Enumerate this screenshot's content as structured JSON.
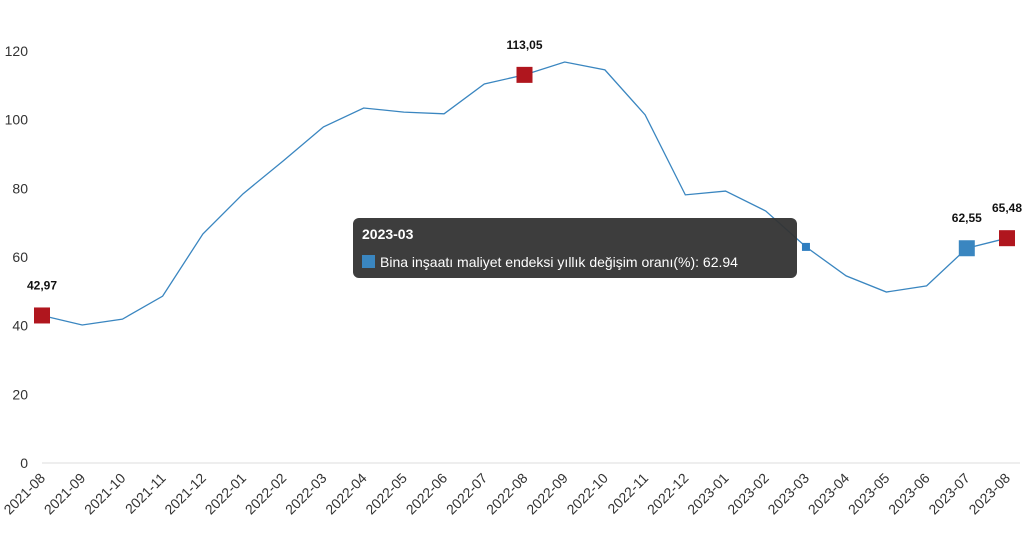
{
  "chart_data": {
    "type": "line",
    "categories": [
      "2021-08",
      "2021-09",
      "2021-10",
      "2021-11",
      "2021-12",
      "2022-01",
      "2022-02",
      "2022-03",
      "2022-04",
      "2022-05",
      "2022-06",
      "2022-07",
      "2022-08",
      "2022-09",
      "2022-10",
      "2022-11",
      "2022-12",
      "2023-01",
      "2023-02",
      "2023-03",
      "2023-04",
      "2023-05",
      "2023-06",
      "2023-07",
      "2023-08"
    ],
    "values": [
      42.97,
      40.2,
      41.9,
      48.6,
      66.7,
      78.4,
      88.0,
      97.9,
      103.4,
      102.2,
      101.7,
      110.4,
      113.05,
      116.8,
      114.5,
      101.4,
      78.1,
      79.2,
      73.4,
      62.94,
      54.5,
      49.8,
      51.6,
      62.55,
      65.48
    ],
    "value_labels": [
      "42,97",
      null,
      null,
      null,
      null,
      null,
      null,
      null,
      null,
      null,
      null,
      null,
      "113,05",
      null,
      null,
      null,
      null,
      null,
      null,
      null,
      null,
      null,
      null,
      "62,55",
      "65,48"
    ],
    "color": "#3a86c0",
    "marker_colors": [
      "#b0161e",
      null,
      null,
      null,
      null,
      null,
      null,
      null,
      null,
      null,
      null,
      null,
      "#b0161e",
      null,
      null,
      null,
      null,
      null,
      null,
      "#2f7ec0",
      null,
      null,
      null,
      "#3a86c0",
      "#b0161e"
    ],
    "ylim": [
      0,
      120
    ],
    "yticks": [
      0,
      20,
      40,
      60,
      80,
      100,
      120
    ],
    "tooltip": {
      "title": "2023-03",
      "text": "Bina inşaatı maliyet endeksi yıllık değişim oranı(%): 62.94",
      "color": "#3a86c0"
    }
  }
}
